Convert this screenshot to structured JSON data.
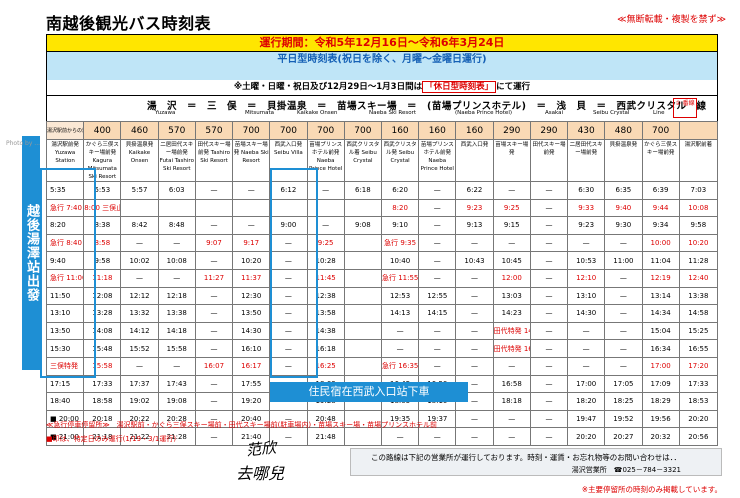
{
  "title": "南越後観光バス時刻表",
  "copy_notice": "≪無断転載・複製を禁ず≫",
  "period": "運行期間：令和5年12月16日～令和6年3月24日",
  "weekday_line1": "平日型時刻表(祝日を除く、月曜～金曜日運行)",
  "note_prefix": "※土曜・日曜・祝日及び12月29日～1月3日間は",
  "note_red": "「休日型時刻表」",
  "note_suffix": "にて運行",
  "route_jp": "湯　沢　＝　三　俣　＝　貝掛温泉　＝　苗場スキー場　＝　(苗場プリンスホテル)　＝　浅　貝　＝　西武クリスタル　線",
  "route_en": [
    "Yuzawa",
    "Mitsumata",
    "Kaikake Onsen",
    "Naeba Ski Resort",
    "(Naeba Prince Hotel)",
    "Asakai",
    "Seibu Crystal",
    "Line"
  ],
  "route_badge": "① 番線",
  "fare_label": "湯沢駅前からの運賃",
  "fares": [
    "400",
    "460",
    "570",
    "570",
    "700",
    "700",
    "700",
    "700",
    "160",
    "160",
    "160",
    "290",
    "290",
    "430",
    "480",
    "700"
  ],
  "stops": [
    "湯沢駅前発 Yuzawa Station",
    "かぐら三俣スキー場前発 Kagura Mitsumata Ski Resort",
    "貝掛温泉発 Kaikake Onsen",
    "二居田代スキー場前発 Futai Tashiro Ski Resort",
    "田代スキー場前発 Tashiro Ski Resort",
    "苗場スキー場発 Naeba Ski Resort",
    "西武入口発 Seibu Villa",
    "苗場プリンスホテル前発 Naeba Prince Hotel",
    "西武クリスタル着 Seibu Crystal",
    "西武クリスタル発 Seibu Crystal",
    "苗場プリンスホテル前発 Naeba Prince Hotel",
    "西武入口発",
    "苗場スキー場発",
    "田代スキー場前発",
    "二居田代スキー場前発",
    "貝掛温泉発",
    "かぐら三俣スキー場前発",
    "湯沢駅前着"
  ],
  "rows": [
    [
      "5:35",
      "5:53",
      "5:57",
      "6:03",
      "—",
      "—",
      "6:12",
      "—",
      "6:18",
      "6:20",
      "—",
      "6:22",
      "—",
      "—",
      "6:30",
      "6:35",
      "6:39",
      "7:03"
    ],
    [
      "急行 7:40",
      "8:00 三俣止",
      "",
      "",
      "",
      "",
      "",
      "",
      "",
      "8:20",
      "—",
      "9:23",
      "9:25",
      "—",
      "9:33",
      "9:40",
      "9:44",
      "10:08"
    ],
    [
      "8:20",
      "8:38",
      "8:42",
      "8:48",
      "—",
      "—",
      "9:00",
      "—",
      "9:08",
      "9:10",
      "—",
      "9:13",
      "9:15",
      "—",
      "9:23",
      "9:30",
      "9:34",
      "9:58"
    ],
    [
      "急行 8:40",
      "8:58",
      "—",
      "—",
      "9:07",
      "9:17",
      "—",
      "9:25",
      "",
      "急行 9:35",
      "—",
      "—",
      "—",
      "—",
      "—",
      "—",
      "10:00",
      "10:20"
    ],
    [
      "9:40",
      "9:58",
      "10:02",
      "10:08",
      "—",
      "10:20",
      "—",
      "10:28",
      "",
      "10:40",
      "—",
      "10:43",
      "10:45",
      "—",
      "10:53",
      "11:00",
      "11:04",
      "11:28"
    ],
    [
      "急行 11:00",
      "11:18",
      "—",
      "—",
      "11:27",
      "11:37",
      "—",
      "11:45",
      "",
      "急行 11:55",
      "—",
      "—",
      "12:00",
      "—",
      "12:10",
      "—",
      "12:19",
      "12:40"
    ],
    [
      "11:50",
      "12:08",
      "12:12",
      "12:18",
      "—",
      "12:30",
      "—",
      "12:38",
      "",
      "12:53",
      "12:55",
      "—",
      "13:03",
      "—",
      "13:10",
      "—",
      "13:14",
      "13:38"
    ],
    [
      "13:10",
      "13:28",
      "13:32",
      "13:38",
      "—",
      "13:50",
      "—",
      "13:58",
      "",
      "14:13",
      "14:15",
      "—",
      "14:23",
      "—",
      "14:30",
      "—",
      "14:34",
      "14:58"
    ],
    [
      "13:50",
      "14:08",
      "14:12",
      "14:18",
      "—",
      "14:30",
      "—",
      "14:38",
      "",
      "—",
      "—",
      "—",
      "田代特発 14:55",
      "—",
      "—",
      "—",
      "15:04",
      "15:25"
    ],
    [
      "15:30",
      "15:48",
      "15:52",
      "15:58",
      "—",
      "16:10",
      "—",
      "16:18",
      "",
      "—",
      "—",
      "—",
      "田代特発 16:25",
      "—",
      "—",
      "—",
      "16:34",
      "16:55"
    ],
    [
      "三俣特発",
      "15:58",
      "—",
      "—",
      "16:07",
      "16:17",
      "—",
      "16:25",
      "",
      "急行 16:35",
      "—",
      "—",
      "—",
      "—",
      "—",
      "—",
      "17:00",
      "17:20"
    ],
    [
      "17:15",
      "17:33",
      "17:37",
      "17:43",
      "—",
      "17:55",
      "—",
      "18:03",
      "",
      "16:45",
      "16:50",
      "—",
      "16:58",
      "—",
      "17:00",
      "17:05",
      "17:09",
      "17:33"
    ],
    [
      "18:40",
      "18:58",
      "19:02",
      "19:08",
      "—",
      "19:20",
      "—",
      "19:28",
      "",
      "18:05",
      "18:10",
      "—",
      "18:18",
      "—",
      "18:20",
      "18:25",
      "18:29",
      "18:53"
    ],
    [
      "■ 20:00",
      "20:18",
      "20:22",
      "20:28",
      "—",
      "20:40",
      "—",
      "20:48",
      "",
      "19:35",
      "19:37",
      "—",
      "—",
      "—",
      "19:47",
      "19:52",
      "19:56",
      "20:20"
    ],
    [
      "■ 21:00",
      "21:18",
      "21:22",
      "21:28",
      "—",
      "21:40",
      "—",
      "21:48",
      "",
      "—",
      "—",
      "—",
      "—",
      "—",
      "20:20",
      "20:27",
      "20:32",
      "20:56"
    ]
  ],
  "footnote1": "≪急行停車停留所≫　湯沢駅前・かぐら三俣スキー場前・田代スキー場前(駐車場内)・苗場スキー場・苗場プリンスホテル前",
  "footnote2": "■印は、特定日のみ運行(1/19・3/1運行)",
  "info_line1": "この路線は下記の営業所が運行しております。時刻・運賃・お忘れ物等のお問い合わせは．．",
  "info_line2": "湯沢営業所　☎025－784－3321",
  "footnote3": "※主要停留所の時刻のみ掲載しています。",
  "sticker_left": "越後湯澤站出發",
  "sticker_bottom": "住民宿在西武入口站下車",
  "handwriting1": "范欣",
  "handwriting2": "去哪兒",
  "watermark": "Photo by ..."
}
